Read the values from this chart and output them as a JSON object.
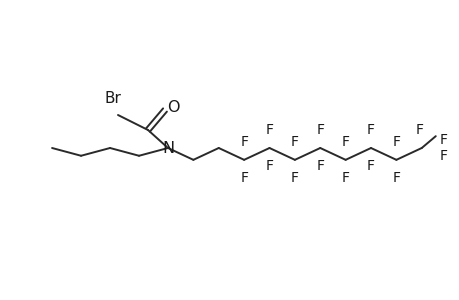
{
  "bg_color": "#ffffff",
  "line_color": "#2a2a2a",
  "line_width": 1.4,
  "font_size": 10.5,
  "font_color": "#1a1a1a",
  "figsize": [
    4.6,
    3.0
  ],
  "dpi": 100,
  "Br_label": "Br",
  "O_label": "O",
  "N_label": "N",
  "F_label": "F"
}
